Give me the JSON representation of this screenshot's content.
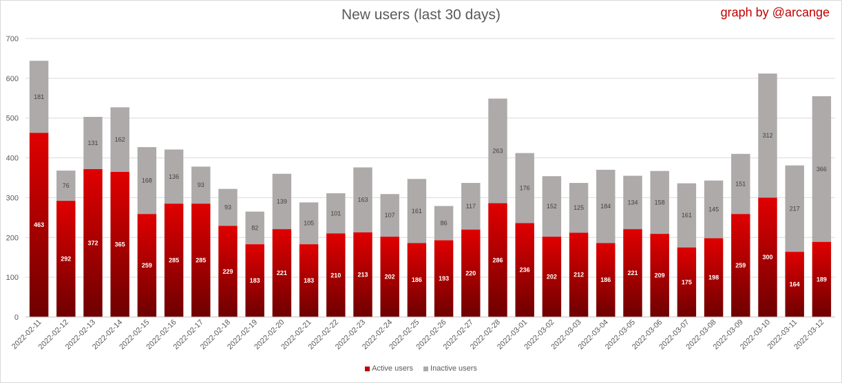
{
  "chart_data": {
    "type": "bar",
    "stacked": true,
    "title": "New users (last 30 days)",
    "credit": "graph by @arcange",
    "categories": [
      "2022-02-11",
      "2022-02-12",
      "2022-02-13",
      "2022-02-14",
      "2022-02-15",
      "2022-02-16",
      "2022-02-17",
      "2022-02-18",
      "2022-02-19",
      "2022-02-20",
      "2022-02-21",
      "2022-02-22",
      "2022-02-23",
      "2022-02-24",
      "2022-02-25",
      "2022-02-26",
      "2022-02-27",
      "2022-02-28",
      "2022-03-01",
      "2022-03-02",
      "2022-03-03",
      "2022-03-04",
      "2022-03-05",
      "2022-03-06",
      "2022-03-07",
      "2022-03-08",
      "2022-03-09",
      "2022-03-10",
      "2022-03-11",
      "2022-03-12"
    ],
    "series": [
      {
        "name": "Active users",
        "color": "#c00000",
        "values": [
          463,
          292,
          372,
          365,
          259,
          285,
          285,
          229,
          183,
          221,
          183,
          210,
          213,
          202,
          186,
          193,
          220,
          286,
          236,
          202,
          212,
          186,
          221,
          209,
          175,
          198,
          259,
          300,
          164,
          189
        ]
      },
      {
        "name": "Inactive users",
        "color": "#aeaaaa",
        "values": [
          181,
          76,
          131,
          162,
          168,
          136,
          93,
          93,
          82,
          139,
          105,
          101,
          163,
          107,
          161,
          86,
          117,
          263,
          176,
          152,
          125,
          184,
          134,
          158,
          161,
          145,
          151,
          312,
          217,
          366
        ]
      }
    ],
    "ylim": [
      0,
      700
    ],
    "yticks": [
      0,
      100,
      200,
      300,
      400,
      500,
      600,
      700
    ],
    "grid": true,
    "legend": "bottom"
  }
}
